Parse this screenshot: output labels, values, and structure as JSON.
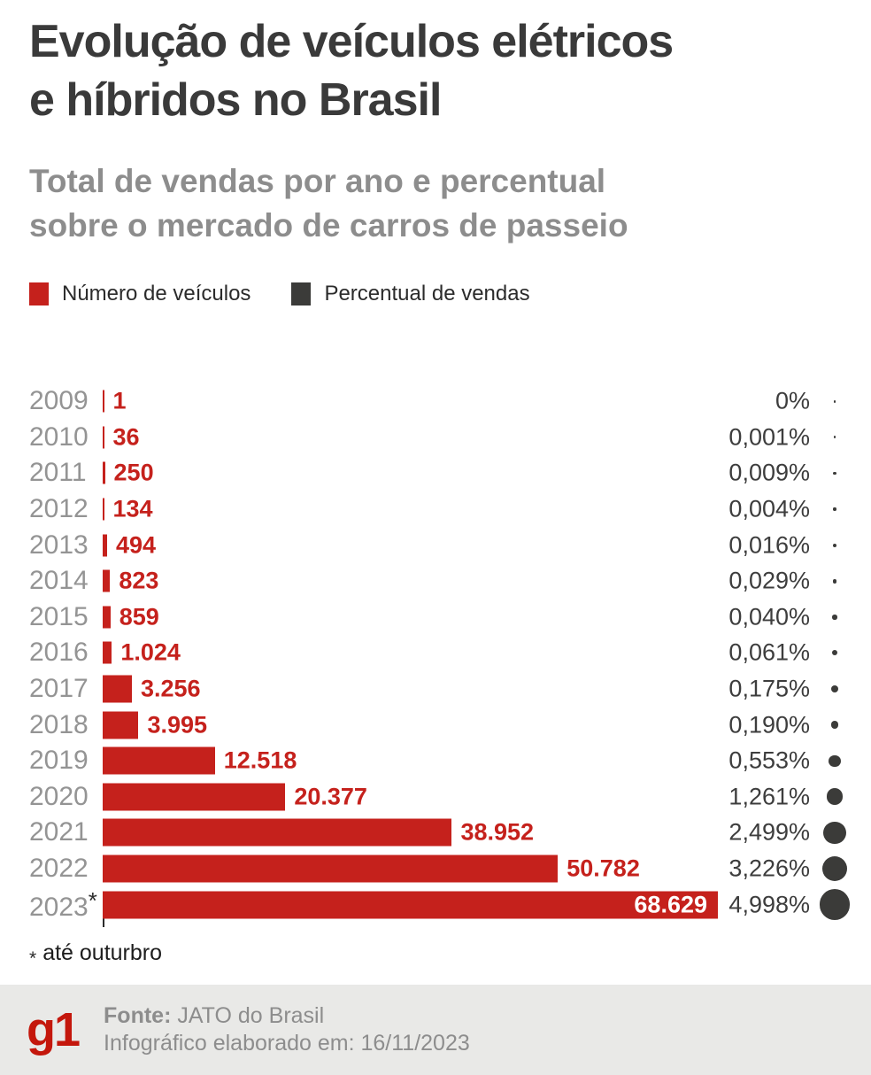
{
  "header": {
    "title_line1": "Evolução de veículos elétricos",
    "title_line2": "e híbridos no Brasil",
    "subtitle_line1": "Total de vendas por ano e percentual",
    "subtitle_line2": "sobre o mercado de carros de passeio"
  },
  "legend": [
    {
      "label": "Número de veículos",
      "color": "#c5211c"
    },
    {
      "label": "Percentual de vendas",
      "color": "#3b3b39"
    }
  ],
  "chart_data": {
    "type": "bar",
    "orientation": "horizontal",
    "title": "Evolução de veículos elétricos e híbridos no Brasil",
    "subtitle": "Total de vendas por ano e percentual sobre o mercado de carros de passeio",
    "legend_position": "top",
    "grid": false,
    "value_axis_hidden": true,
    "categories": [
      "2009",
      "2010",
      "2011",
      "2012",
      "2013",
      "2014",
      "2015",
      "2016",
      "2017",
      "2018",
      "2019",
      "2020",
      "2021",
      "2022",
      "2023*"
    ],
    "series": [
      {
        "name": "Número de veículos",
        "values": [
          1,
          36,
          250,
          134,
          494,
          823,
          859,
          1024,
          3256,
          3995,
          12518,
          20377,
          38952,
          50782,
          68629
        ],
        "labels": [
          "1",
          "36",
          "250",
          "134",
          "494",
          "823",
          "859",
          "1.024",
          "3.256",
          "3.995",
          "12.518",
          "20.377",
          "38.952",
          "50.782",
          "68.629"
        ],
        "color": "#c5211c"
      },
      {
        "name": "Percentual de vendas",
        "values": [
          0,
          0.001,
          0.009,
          0.004,
          0.016,
          0.029,
          0.04,
          0.061,
          0.175,
          0.19,
          0.553,
          1.261,
          2.499,
          3.226,
          4.998
        ],
        "labels": [
          "0%",
          "0,001%",
          "0,009%",
          "0,004%",
          "0,016%",
          "0,029%",
          "0,040%",
          "0,061%",
          "0,175%",
          "0,190%",
          "0,553%",
          "1,261%",
          "2,499%",
          "3,226%",
          "4,998%"
        ],
        "color": "#3b3b39",
        "style": "proportional-dot"
      }
    ]
  },
  "footnote_marker": "*",
  "footnote": "até outurbro",
  "footer": {
    "logo": "g1",
    "source_label": "Fonte:",
    "source": "JATO do Brasil",
    "info_label": "Infográfico elaborado em:",
    "info_date": "16/11/2023"
  },
  "colors": {
    "accent_red": "#c5211c",
    "dark": "#3b3b39",
    "title_text": "#3a3a3a",
    "subtitle_text": "#8d8d8d",
    "year_text": "#949494",
    "percent_text": "#3d3d3d",
    "footer_bg": "#e9e9e7",
    "footer_text": "#8d8d8d",
    "logo_red": "#c4170c"
  }
}
